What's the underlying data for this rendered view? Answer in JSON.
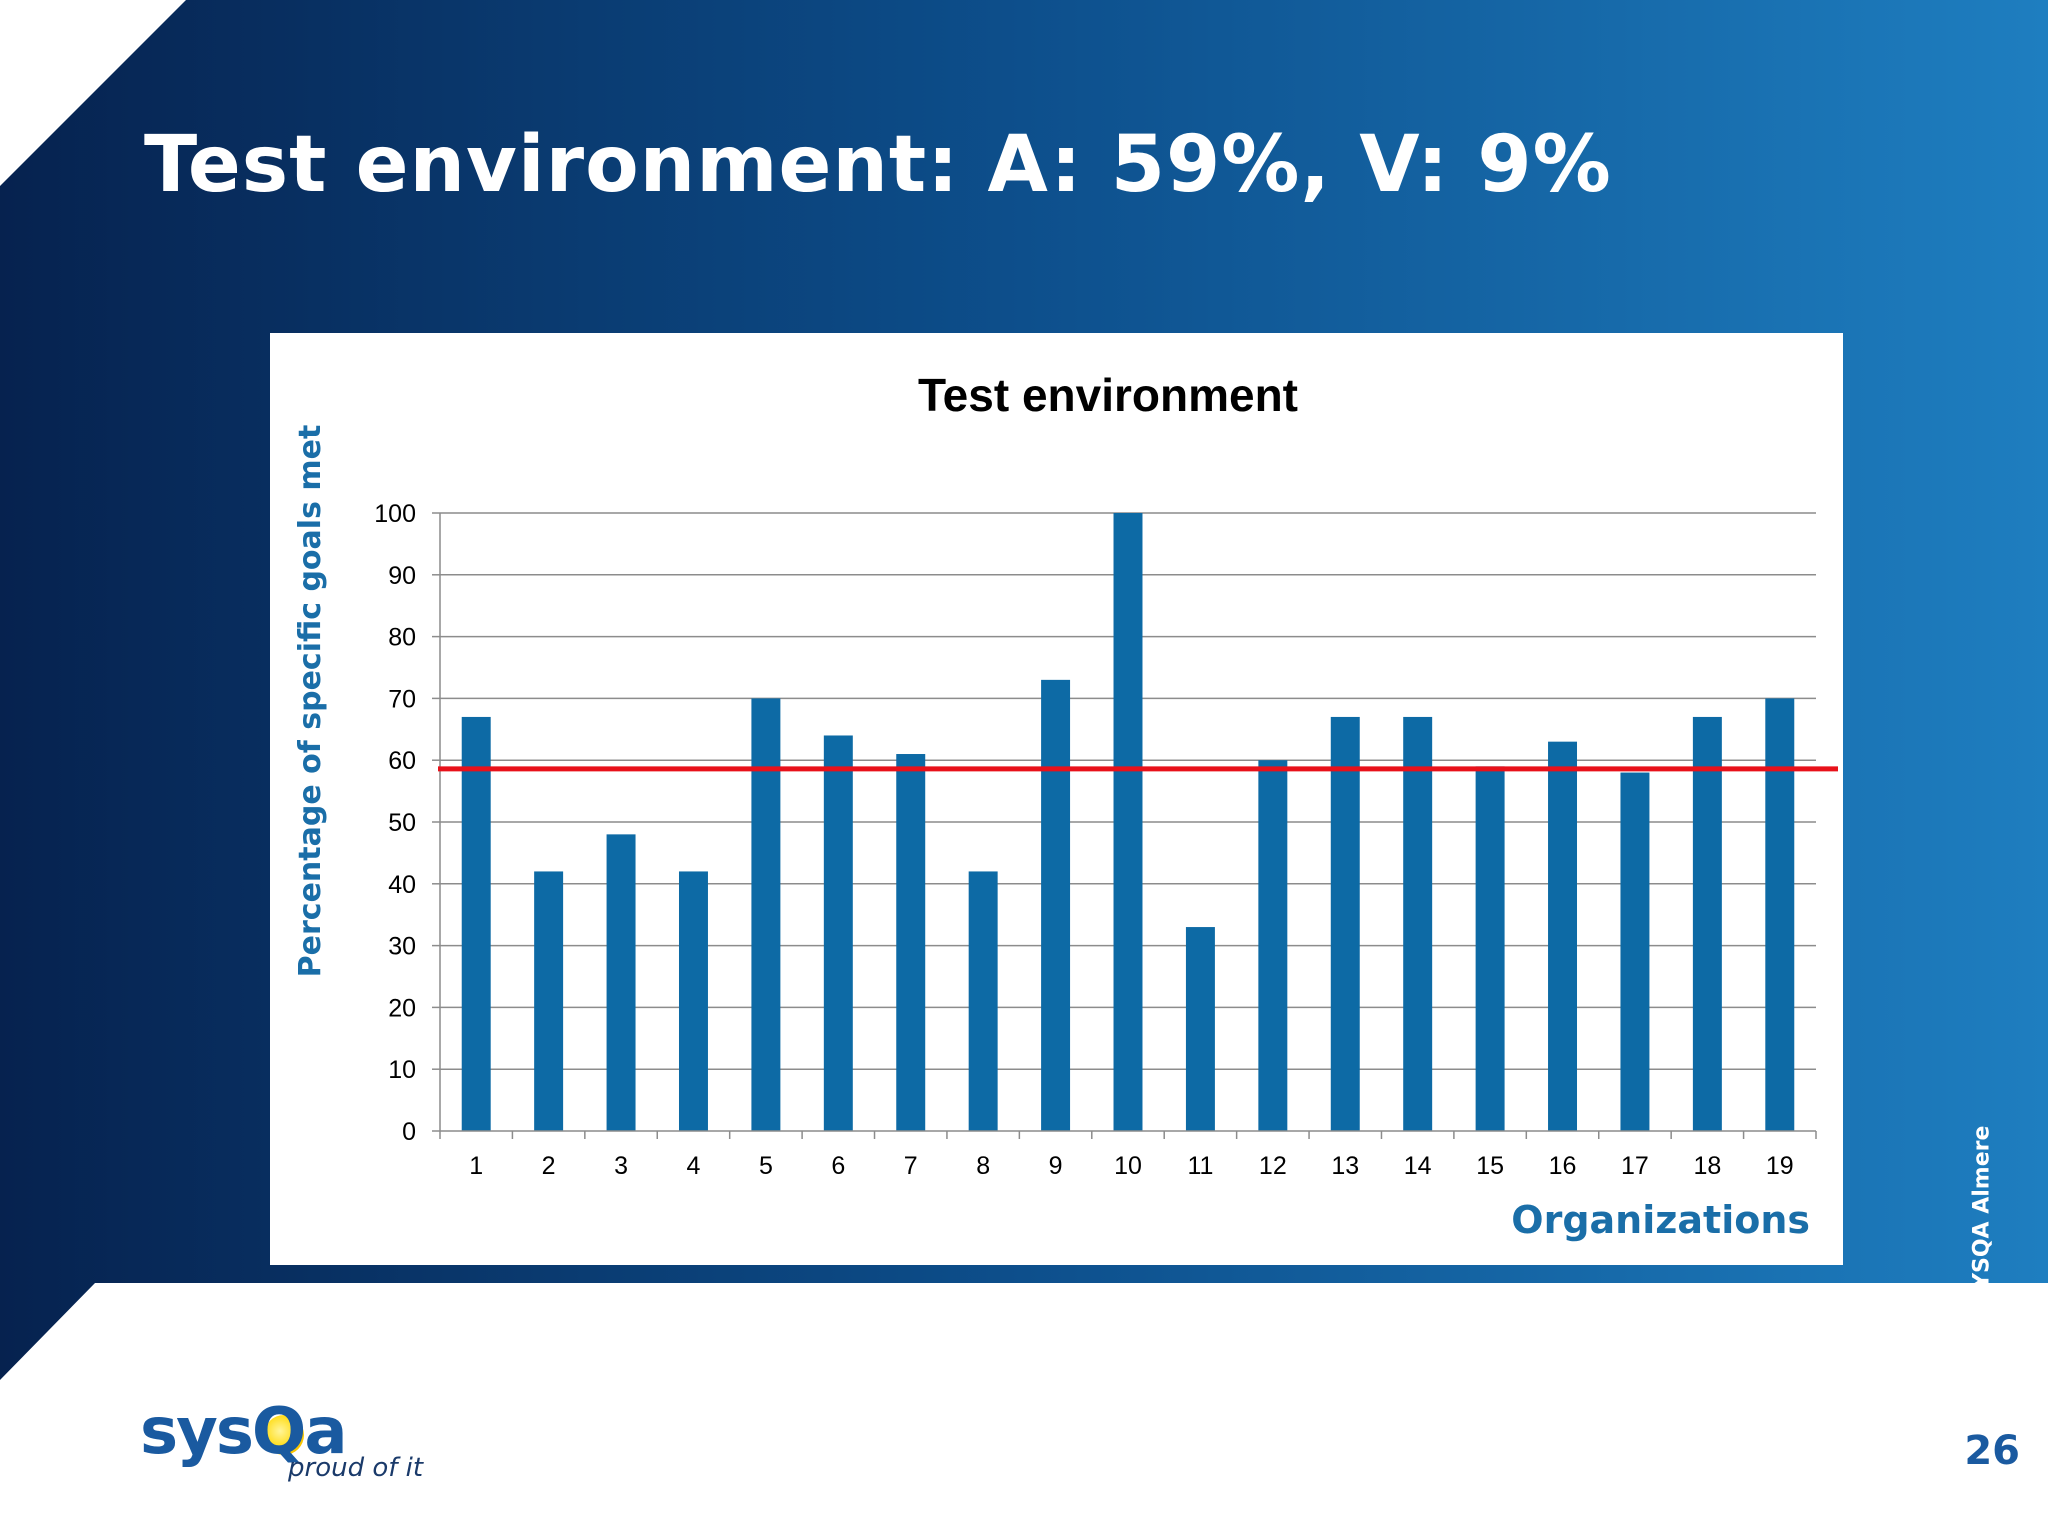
{
  "slide": {
    "title": "Test environment: A: 59%, V: 9%",
    "copyright": "© SYSQA Almere",
    "page_number": "26",
    "logo": {
      "word": "sysQa",
      "tagline": "proud of it"
    },
    "colors": {
      "background_dark": "#06224f",
      "background_light": "#1e78bc",
      "title": "#ffffff",
      "accent_text": "#1a5aa0"
    }
  },
  "chart_data": {
    "type": "bar",
    "title": "Test environment",
    "xlabel": "Organizations",
    "ylabel": "Percentage of specific goals met",
    "categories": [
      "1",
      "2",
      "3",
      "4",
      "5",
      "6",
      "7",
      "8",
      "9",
      "10",
      "11",
      "12",
      "13",
      "14",
      "15",
      "16",
      "17",
      "18",
      "19"
    ],
    "values": [
      67,
      42,
      48,
      42,
      70,
      64,
      61,
      42,
      73,
      100,
      33,
      60,
      67,
      67,
      59,
      63,
      58,
      67,
      70
    ],
    "ylim": [
      0,
      100
    ],
    "yticks": [
      0,
      10,
      20,
      30,
      40,
      50,
      60,
      70,
      80,
      90,
      100
    ],
    "reference_line": {
      "value": 58.6,
      "color": "#e8111a"
    },
    "grid": true,
    "bar_color": "#0d6aa5",
    "label_color": "#1a6ea8"
  }
}
